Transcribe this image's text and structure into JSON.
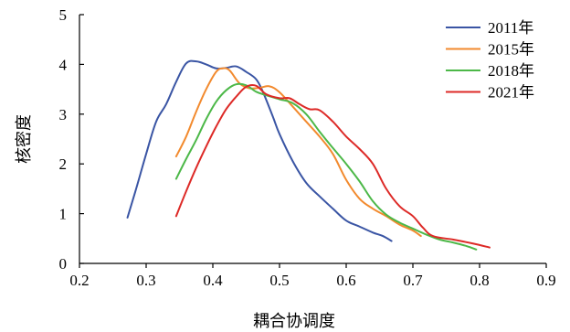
{
  "chart_data": {
    "type": "line",
    "xlabel": "耦合协调度",
    "ylabel": "核密度",
    "xlim": [
      0.2,
      0.9
    ],
    "ylim": [
      0,
      5
    ],
    "xticks": [
      "0.2",
      "0.3",
      "0.4",
      "0.5",
      "0.6",
      "0.7",
      "0.8",
      "0.9"
    ],
    "yticks": [
      "0",
      "1",
      "2",
      "3",
      "4",
      "5"
    ],
    "grid": false,
    "legend_position": "top-right",
    "series": [
      {
        "name": "2011年",
        "color": "#3a55a4",
        "x": [
          0.272,
          0.285,
          0.3,
          0.315,
          0.33,
          0.345,
          0.36,
          0.375,
          0.39,
          0.405,
          0.42,
          0.435,
          0.45,
          0.465,
          0.475,
          0.49,
          0.5,
          0.52,
          0.54,
          0.56,
          0.58,
          0.6,
          0.62,
          0.64,
          0.655,
          0.668
        ],
        "y": [
          0.92,
          1.5,
          2.2,
          2.85,
          3.2,
          3.65,
          4.02,
          4.06,
          4.0,
          3.92,
          3.93,
          3.96,
          3.85,
          3.7,
          3.45,
          2.95,
          2.6,
          2.05,
          1.62,
          1.35,
          1.1,
          0.86,
          0.74,
          0.62,
          0.55,
          0.45
        ]
      },
      {
        "name": "2015年",
        "color": "#f28a2e",
        "x": [
          0.345,
          0.36,
          0.375,
          0.39,
          0.405,
          0.415,
          0.425,
          0.44,
          0.455,
          0.47,
          0.485,
          0.5,
          0.52,
          0.54,
          0.56,
          0.58,
          0.6,
          0.62,
          0.64,
          0.66,
          0.68,
          0.7,
          0.712
        ],
        "y": [
          2.15,
          2.55,
          3.05,
          3.5,
          3.85,
          3.92,
          3.88,
          3.62,
          3.52,
          3.53,
          3.56,
          3.44,
          3.15,
          2.85,
          2.55,
          2.2,
          1.68,
          1.3,
          1.1,
          0.95,
          0.78,
          0.66,
          0.55
        ]
      },
      {
        "name": "2018年",
        "color": "#4cb848",
        "x": [
          0.345,
          0.36,
          0.375,
          0.39,
          0.405,
          0.42,
          0.435,
          0.45,
          0.465,
          0.48,
          0.5,
          0.52,
          0.54,
          0.56,
          0.58,
          0.6,
          0.62,
          0.64,
          0.66,
          0.68,
          0.7,
          0.72,
          0.74,
          0.76,
          0.78,
          0.795
        ],
        "y": [
          1.7,
          2.1,
          2.48,
          2.9,
          3.25,
          3.48,
          3.6,
          3.58,
          3.45,
          3.38,
          3.3,
          3.22,
          3.0,
          2.65,
          2.32,
          2.0,
          1.65,
          1.25,
          0.98,
          0.82,
          0.7,
          0.58,
          0.48,
          0.42,
          0.35,
          0.28
        ]
      },
      {
        "name": "2021年",
        "color": "#dd2a27",
        "x": [
          0.345,
          0.36,
          0.375,
          0.39,
          0.405,
          0.42,
          0.435,
          0.45,
          0.465,
          0.48,
          0.5,
          0.515,
          0.53,
          0.545,
          0.56,
          0.58,
          0.6,
          0.62,
          0.64,
          0.66,
          0.68,
          0.7,
          0.715,
          0.73,
          0.76,
          0.79,
          0.815
        ],
        "y": [
          0.95,
          1.45,
          1.92,
          2.35,
          2.75,
          3.1,
          3.35,
          3.55,
          3.57,
          3.4,
          3.32,
          3.32,
          3.2,
          3.1,
          3.08,
          2.85,
          2.55,
          2.3,
          2.0,
          1.5,
          1.15,
          0.95,
          0.72,
          0.55,
          0.48,
          0.4,
          0.32
        ]
      }
    ]
  }
}
